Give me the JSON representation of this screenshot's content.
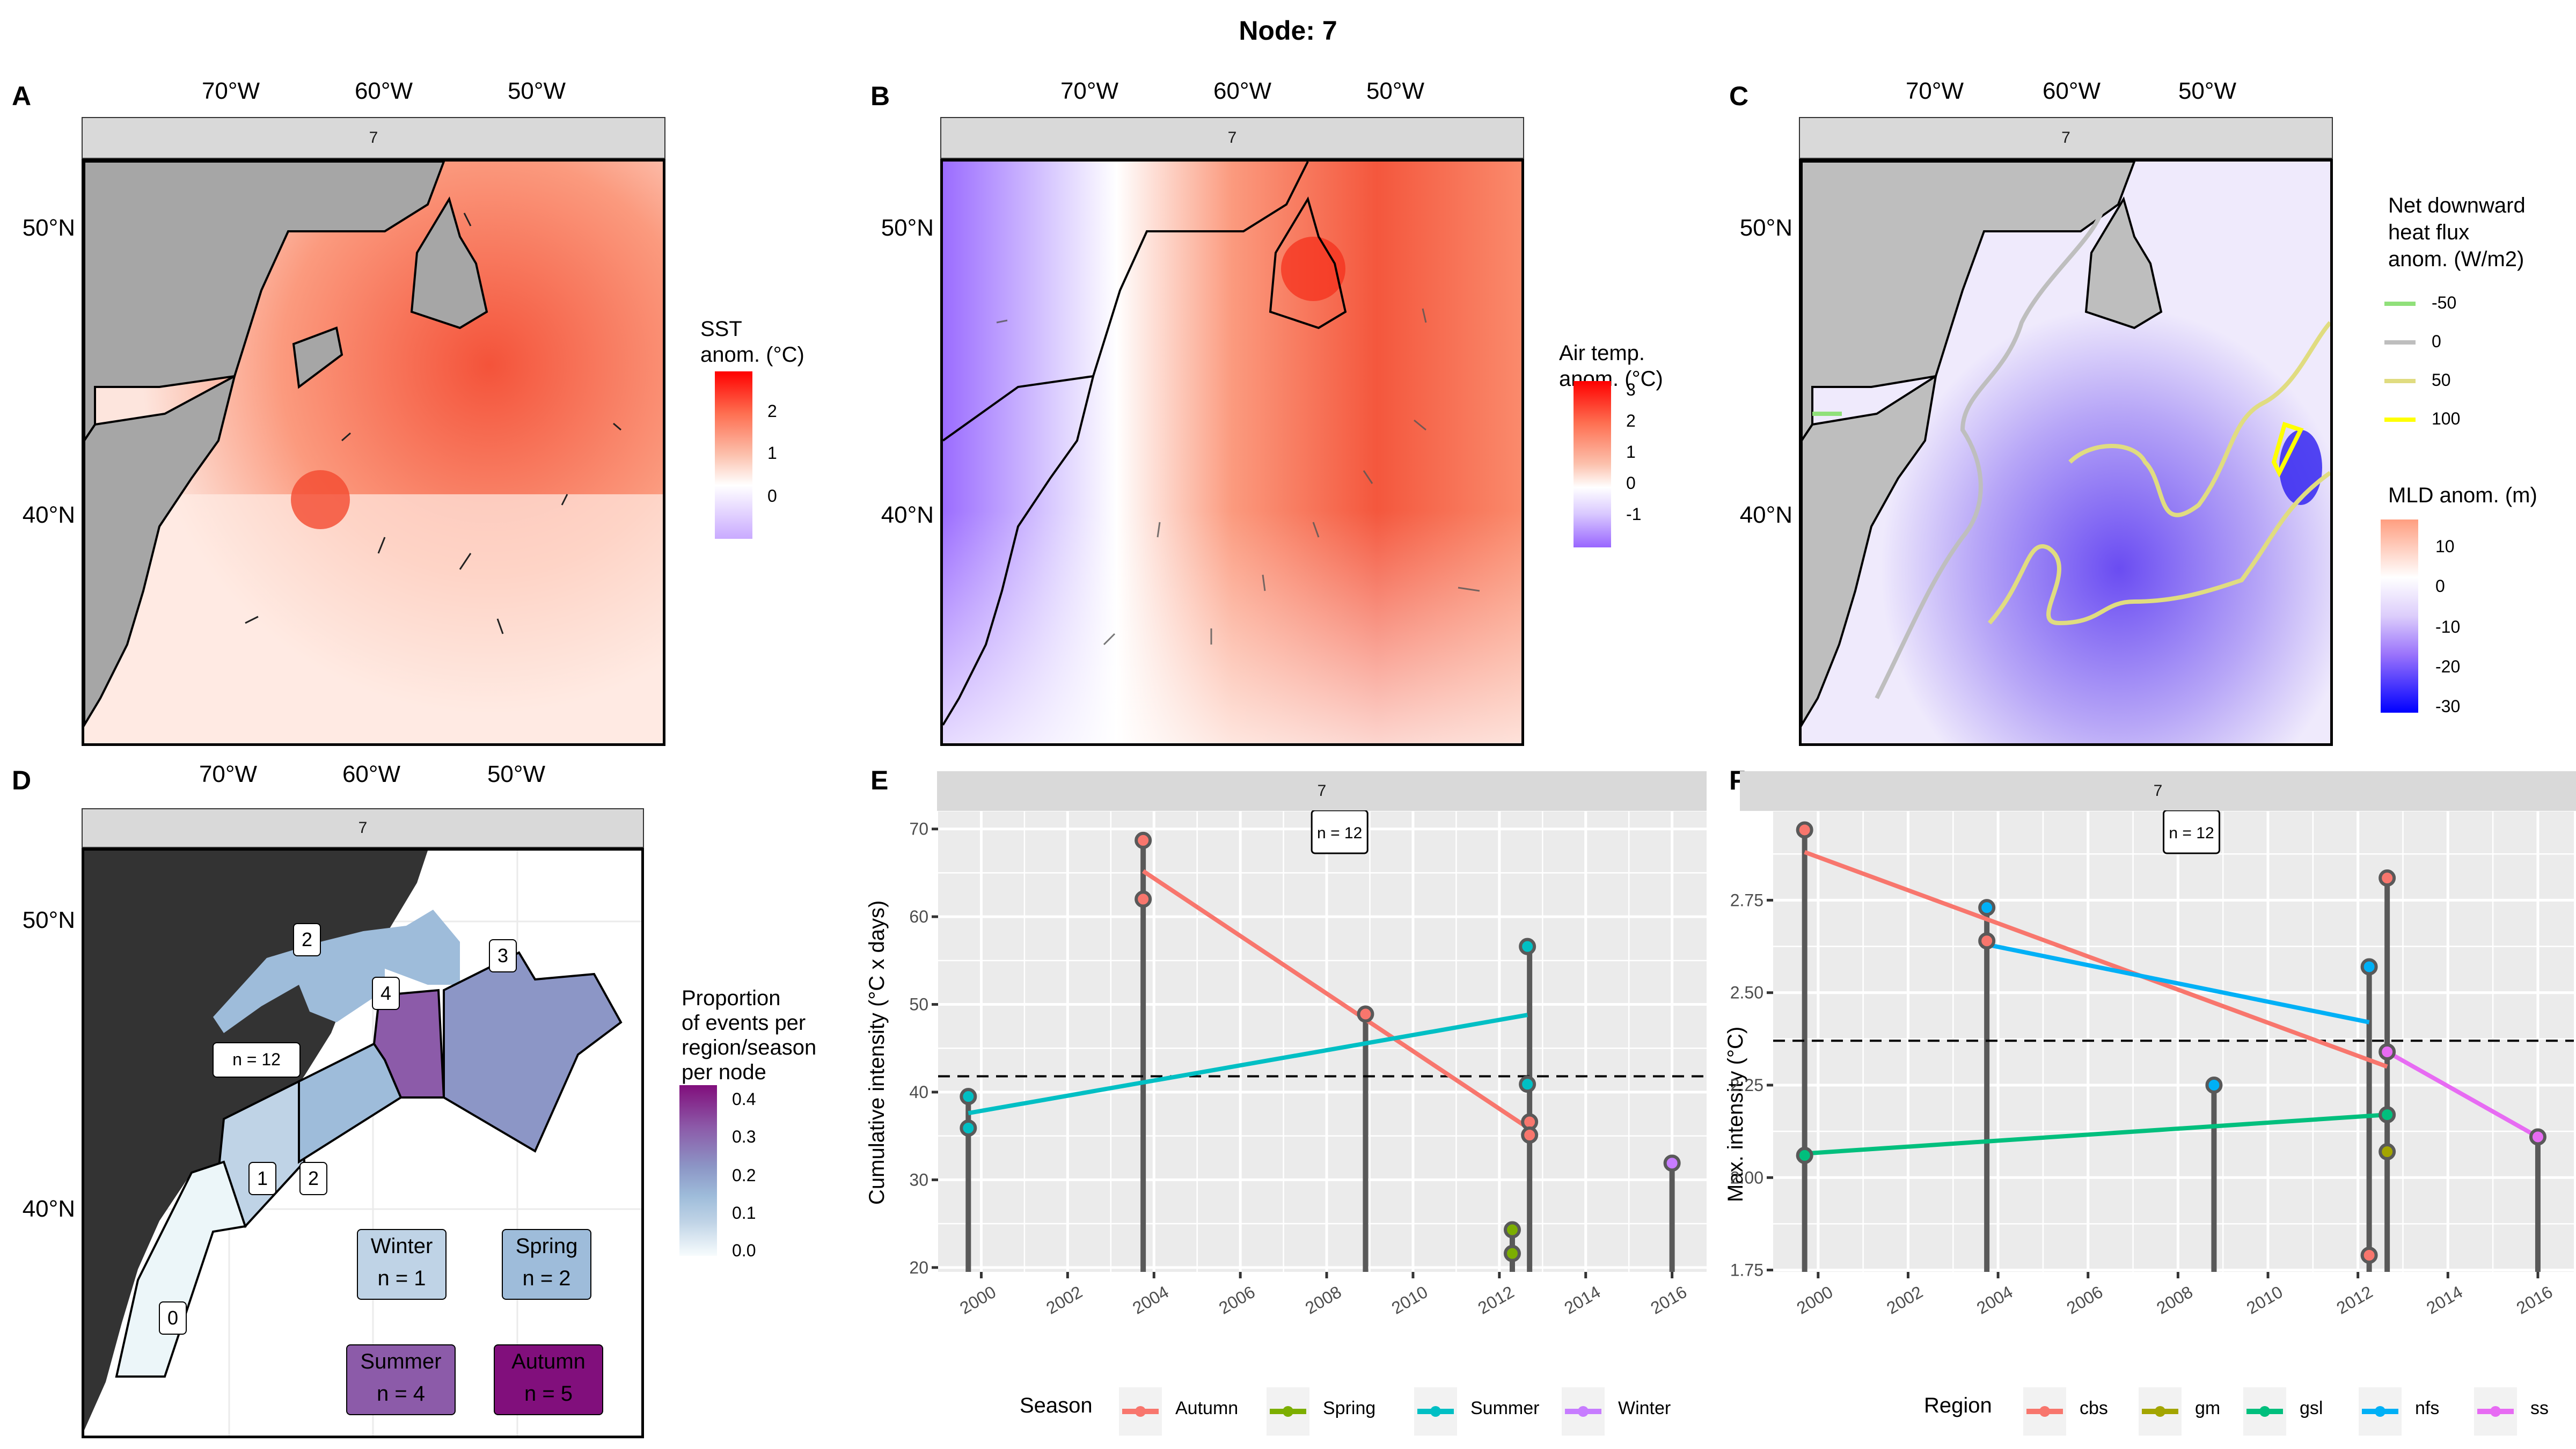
{
  "figure_title": "Node: 7",
  "panels": {
    "A": {
      "label": "A",
      "strip": "7",
      "lon_ticks": [
        "70°W",
        "60°W",
        "50°W"
      ],
      "lat_ticks": [
        "50°N",
        "40°N"
      ],
      "legend_title_line1": "SST",
      "legend_title_line2": "anom. (°C)",
      "legend_ticks": [
        "2",
        "1",
        "0"
      ],
      "colors": {
        "high": "#ff0000",
        "mid": "#ffffff",
        "low": "#c9aaff",
        "land": "#a6a6a6"
      }
    },
    "B": {
      "label": "B",
      "strip": "7",
      "lon_ticks": [
        "70°W",
        "60°W",
        "50°W"
      ],
      "lat_ticks": [
        "50°N",
        "40°N"
      ],
      "legend_title_line1": "Air temp.",
      "legend_title_line2": "anom. (°C)",
      "legend_ticks": [
        "3",
        "2",
        "1",
        "0",
        "-1"
      ],
      "colors": {
        "high": "#ff0000",
        "mid": "#ffffff",
        "low": "#9966ff"
      }
    },
    "C": {
      "label": "C",
      "strip": "7",
      "lon_ticks": [
        "70°W",
        "60°W",
        "50°W"
      ],
      "lat_ticks": [
        "50°N",
        "40°N"
      ],
      "flux_legend_title": [
        "Net downward",
        "heat flux",
        "anom. (W/m2)"
      ],
      "flux_levels": [
        {
          "label": "-50",
          "color": "#90e07a"
        },
        {
          "label": "0",
          "color": "#bebebe"
        },
        {
          "label": "50",
          "color": "#e0dc80"
        },
        {
          "label": "100",
          "color": "#ffff00"
        }
      ],
      "mld_legend_title": "MLD anom. (m)",
      "mld_ticks": [
        "10",
        "0",
        "-10",
        "-20",
        "-30"
      ],
      "colors": {
        "high": "#ff9e80",
        "mid": "#ffffff",
        "low": "#0000ff",
        "land": "#bebebe"
      }
    },
    "D": {
      "label": "D",
      "strip": "7",
      "lon_ticks": [
        "70°W",
        "60°W",
        "50°W"
      ],
      "lat_ticks": [
        "50°N",
        "40°N"
      ],
      "legend_title": [
        "Proportion",
        "of events per",
        "region/season",
        "per node"
      ],
      "legend_ticks": [
        "0.4",
        "0.3",
        "0.2",
        "0.1",
        "0.0"
      ],
      "region_counts": [
        {
          "region": "region-0",
          "n": "0",
          "proportion": 0.0
        },
        {
          "region": "region-1",
          "n": "1",
          "proportion": 0.083
        },
        {
          "region": "region-2-south",
          "n": "2",
          "proportion": 0.167
        },
        {
          "region": "region-2-north",
          "n": "2",
          "proportion": 0.167
        },
        {
          "region": "region-4",
          "n": "4",
          "proportion": 0.333
        },
        {
          "region": "region-3",
          "n": "3",
          "proportion": 0.25
        }
      ],
      "total_label": "n = 12",
      "seasons": [
        {
          "name": "Winter",
          "n": "n = 1",
          "proportion": 0.083,
          "color": "#bfd3e6"
        },
        {
          "name": "Spring",
          "n": "n = 2",
          "proportion": 0.167,
          "color": "#9ebcda"
        },
        {
          "name": "Summer",
          "n": "n = 4",
          "proportion": 0.333,
          "color": "#8c5ba9"
        },
        {
          "name": "Autumn",
          "n": "n = 5",
          "proportion": 0.417,
          "color": "#810f7c"
        }
      ],
      "colors": {
        "land": "#333333"
      }
    }
  },
  "chart_data": [
    {
      "panel": "E",
      "type": "scatter",
      "strip": "7",
      "annotation": "n = 12",
      "title": "",
      "xlabel": "",
      "ylabel": "Cumulative intensity (°C x days)",
      "xlim": [
        1999,
        2016.8
      ],
      "ylim": [
        19.5,
        72
      ],
      "x_ticks": [
        "2000",
        "2002",
        "2004",
        "2006",
        "2008",
        "2010",
        "2012",
        "2014",
        "2016"
      ],
      "y_ticks": [
        20,
        30,
        40,
        50,
        60,
        70
      ],
      "reference_line": 41.8,
      "legend_title": "Season",
      "legend_position": "bottom",
      "series": [
        {
          "name": "Autumn",
          "color": "#f8766d",
          "points": [
            [
              2003.75,
              68.7
            ],
            [
              2003.75,
              62.0
            ],
            [
              2008.9,
              48.9
            ],
            [
              2012.7,
              36.6
            ],
            [
              2012.7,
              35.1
            ]
          ],
          "trend": [
            [
              2003.75,
              65.2
            ],
            [
              2012.7,
              35.8
            ]
          ]
        },
        {
          "name": "Spring",
          "color": "#7cae00",
          "points": [
            [
              2012.3,
              24.3
            ],
            [
              2012.3,
              21.6
            ]
          ],
          "trend": null
        },
        {
          "name": "Summer",
          "color": "#00bfc4",
          "points": [
            [
              1999.7,
              39.5
            ],
            [
              1999.7,
              35.9
            ],
            [
              2012.65,
              56.6
            ],
            [
              2012.65,
              40.9
            ]
          ],
          "trend": [
            [
              1999.7,
              37.6
            ],
            [
              2012.65,
              48.8
            ]
          ]
        },
        {
          "name": "Winter",
          "color": "#c77cff",
          "points": [
            [
              2016.0,
              31.9
            ]
          ],
          "trend": null
        }
      ],
      "stems": [
        {
          "x": 1999.7,
          "top": 39.5
        },
        {
          "x": 2003.75,
          "top": 68.7
        },
        {
          "x": 2008.9,
          "top": 48.9
        },
        {
          "x": 2012.3,
          "top": 24.3
        },
        {
          "x": 2012.7,
          "top": 56.6
        },
        {
          "x": 2016.0,
          "top": 31.9
        }
      ]
    },
    {
      "panel": "F",
      "type": "scatter",
      "strip": "7",
      "annotation": "n = 12",
      "title": "",
      "xlabel": "",
      "ylabel": "Max. intensity (°C)",
      "xlim": [
        1999,
        2016.8
      ],
      "ylim": [
        1.745,
        2.99
      ],
      "x_ticks": [
        "2000",
        "2002",
        "2004",
        "2006",
        "2008",
        "2010",
        "2012",
        "2014",
        "2016"
      ],
      "y_ticks": [
        "1.75",
        "2.00",
        "2.25",
        "2.50",
        "2.75"
      ],
      "reference_line": 2.37,
      "legend_title": "Region",
      "legend_position": "bottom",
      "series": [
        {
          "name": "cbs",
          "color": "#f8766d",
          "points": [
            [
              1999.7,
              2.94
            ],
            [
              2003.75,
              2.64
            ],
            [
              2012.25,
              1.79
            ],
            [
              2012.65,
              2.81
            ]
          ],
          "trend": [
            [
              1999.7,
              2.88
            ],
            [
              2012.65,
              2.3
            ]
          ]
        },
        {
          "name": "gm",
          "color": "#a3a500",
          "points": [
            [
              2012.65,
              2.07
            ]
          ],
          "trend": null
        },
        {
          "name": "gsl",
          "color": "#00bf7d",
          "points": [
            [
              1999.7,
              2.06
            ],
            [
              2012.65,
              2.17
            ]
          ],
          "trend": [
            [
              1999.7,
              2.065
            ],
            [
              2012.65,
              2.17
            ]
          ]
        },
        {
          "name": "nfs",
          "color": "#00b0f6",
          "points": [
            [
              2003.75,
              2.73
            ],
            [
              2008.8,
              2.25
            ],
            [
              2012.25,
              2.57
            ]
          ],
          "trend": [
            [
              2003.75,
              2.63
            ],
            [
              2012.25,
              2.42
            ]
          ]
        },
        {
          "name": "ss",
          "color": "#e76bf3",
          "points": [
            [
              2012.65,
              2.34
            ],
            [
              2016.0,
              2.11
            ]
          ],
          "trend": [
            [
              2012.65,
              2.34
            ],
            [
              2016.0,
              2.11
            ]
          ]
        }
      ],
      "stems": [
        {
          "x": 1999.7,
          "top": 2.94
        },
        {
          "x": 2003.75,
          "top": 2.73
        },
        {
          "x": 2008.8,
          "top": 2.25
        },
        {
          "x": 2012.25,
          "top": 2.57
        },
        {
          "x": 2012.65,
          "top": 2.81
        },
        {
          "x": 2016.0,
          "top": 2.11
        }
      ]
    }
  ]
}
